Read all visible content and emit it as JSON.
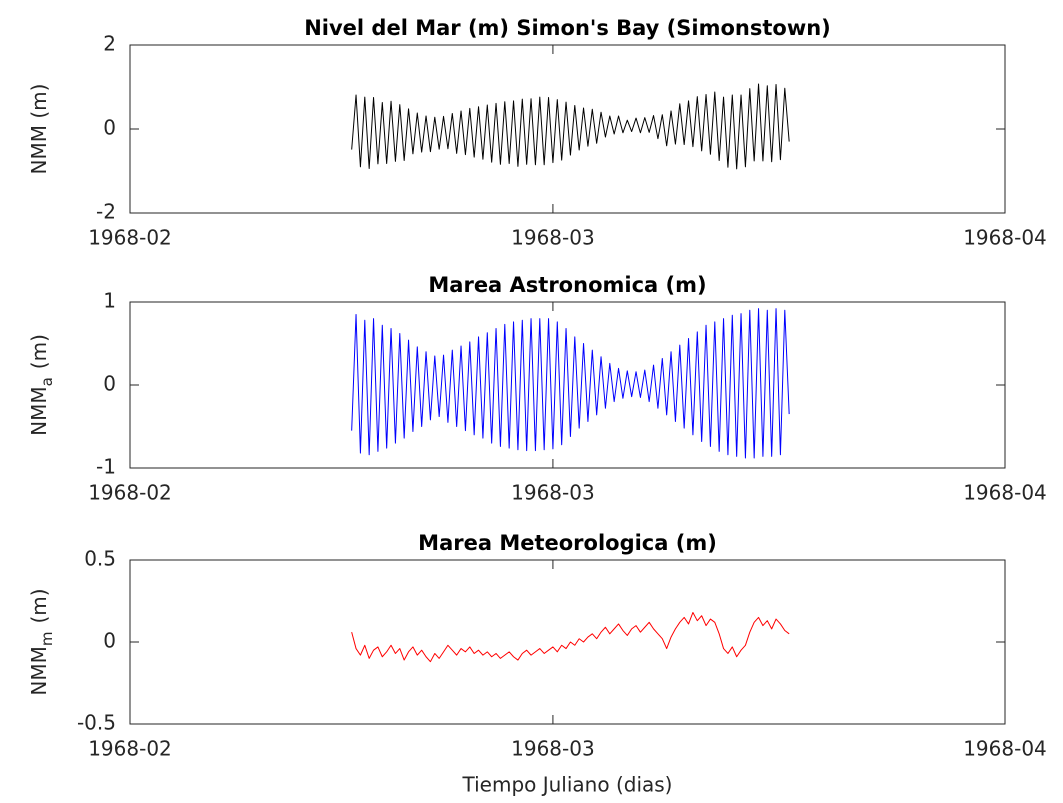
{
  "chart_data": [
    {
      "type": "line",
      "title": "Nivel del Mar (m) Simon's Bay (Simonstown)",
      "ylabel": "NMM (m)",
      "color": "#000000",
      "xlim": [
        0,
        60
      ],
      "xticks": [
        {
          "value": 0,
          "label": "1968-02"
        },
        {
          "value": 29,
          "label": "1968-03"
        },
        {
          "value": 60,
          "label": "1968-04"
        }
      ],
      "ylim": [
        -2,
        2
      ],
      "yticks": [
        -2,
        0,
        2
      ],
      "x": [
        15.2,
        15.5,
        15.8,
        16.1,
        16.4,
        16.7,
        17,
        17.3,
        17.6,
        17.9,
        18.2,
        18.5,
        18.8,
        19.1,
        19.4,
        19.7,
        20,
        20.3,
        20.6,
        20.9,
        21.2,
        21.5,
        21.8,
        22.1,
        22.4,
        22.7,
        23,
        23.3,
        23.6,
        23.9,
        24.2,
        24.5,
        24.8,
        25.1,
        25.4,
        25.7,
        26,
        26.3,
        26.6,
        26.9,
        27.2,
        27.5,
        27.8,
        28.1,
        28.4,
        28.7,
        29,
        29.3,
        29.6,
        29.9,
        30.2,
        30.5,
        30.8,
        31.1,
        31.4,
        31.7,
        32,
        32.3,
        32.6,
        32.9,
        33.2,
        33.5,
        33.8,
        34.1,
        34.4,
        34.7,
        35,
        35.3,
        35.6,
        35.9,
        36.2,
        36.5,
        36.8,
        37.1,
        37.4,
        37.7,
        38,
        38.3,
        38.6,
        38.9,
        39.2,
        39.5,
        39.8,
        40.1,
        40.4,
        40.7,
        41,
        41.3,
        41.6,
        41.9,
        42.2,
        42.5,
        42.8,
        43.1,
        43.4,
        43.7,
        44,
        44.3,
        44.6,
        44.9,
        45.2
      ],
      "values": [
        -0.49,
        0.81,
        -0.9,
        0.76,
        -0.94,
        0.75,
        -0.83,
        0.63,
        -0.82,
        0.66,
        -0.77,
        0.58,
        -0.75,
        0.48,
        -0.59,
        0.38,
        -0.55,
        0.31,
        -0.54,
        0.28,
        -0.48,
        0.3,
        -0.47,
        0.37,
        -0.58,
        0.43,
        -0.61,
        0.49,
        -0.67,
        0.53,
        -0.72,
        0.57,
        -0.79,
        0.61,
        -0.84,
        0.65,
        -0.82,
        0.67,
        -0.89,
        0.71,
        -0.84,
        0.72,
        -0.85,
        0.76,
        -0.85,
        0.75,
        -0.8,
        0.7,
        -0.74,
        0.64,
        -0.62,
        0.56,
        -0.5,
        0.5,
        -0.41,
        0.47,
        -0.34,
        0.4,
        -0.19,
        0.31,
        -0.12,
        0.31,
        -0.09,
        0.21,
        -0.06,
        0.26,
        -0.09,
        0.27,
        -0.08,
        0.32,
        -0.23,
        0.34,
        -0.4,
        0.43,
        -0.36,
        0.6,
        -0.37,
        0.67,
        -0.42,
        0.77,
        -0.52,
        0.82,
        -0.6,
        0.88,
        -0.75,
        0.76,
        -0.91,
        0.81,
        -0.95,
        0.81,
        -0.9,
        0.96,
        -0.76,
        1.07,
        -0.76,
        1.03,
        -0.78,
        1.06,
        -0.73,
        0.97,
        -0.3
      ]
    },
    {
      "type": "line",
      "title": "Marea Astronomica (m)",
      "ylabel": "NMM",
      "ylabel_subscript": "a",
      "ylabel_suffix": "(m)",
      "color": "#0000ff",
      "xlim": [
        0,
        60
      ],
      "xticks": [
        {
          "value": 0,
          "label": "1968-02"
        },
        {
          "value": 29,
          "label": "1968-03"
        },
        {
          "value": 60,
          "label": "1968-04"
        }
      ],
      "ylim": [
        -1,
        1
      ],
      "yticks": [
        -1,
        0,
        1
      ],
      "x": [
        15.2,
        15.5,
        15.8,
        16.1,
        16.4,
        16.7,
        17,
        17.3,
        17.6,
        17.9,
        18.2,
        18.5,
        18.8,
        19.1,
        19.4,
        19.7,
        20,
        20.3,
        20.6,
        20.9,
        21.2,
        21.5,
        21.8,
        22.1,
        22.4,
        22.7,
        23,
        23.3,
        23.6,
        23.9,
        24.2,
        24.5,
        24.8,
        25.1,
        25.4,
        25.7,
        26,
        26.3,
        26.6,
        26.9,
        27.2,
        27.5,
        27.8,
        28.1,
        28.4,
        28.7,
        29,
        29.3,
        29.6,
        29.9,
        30.2,
        30.5,
        30.8,
        31.1,
        31.4,
        31.7,
        32,
        32.3,
        32.6,
        32.9,
        33.2,
        33.5,
        33.8,
        34.1,
        34.4,
        34.7,
        35,
        35.3,
        35.6,
        35.9,
        36.2,
        36.5,
        36.8,
        37.1,
        37.4,
        37.7,
        38,
        38.3,
        38.6,
        38.9,
        39.2,
        39.5,
        39.8,
        40.1,
        40.4,
        40.7,
        41,
        41.3,
        41.6,
        41.9,
        42.2,
        42.5,
        42.8,
        43.1,
        43.4,
        43.7,
        44,
        44.3,
        44.6,
        44.9,
        45.2
      ],
      "values": [
        -0.55,
        0.85,
        -0.82,
        0.78,
        -0.84,
        0.8,
        -0.8,
        0.72,
        -0.76,
        0.68,
        -0.7,
        0.62,
        -0.64,
        0.54,
        -0.56,
        0.46,
        -0.5,
        0.4,
        -0.42,
        0.35,
        -0.38,
        0.36,
        -0.45,
        0.42,
        -0.5,
        0.47,
        -0.55,
        0.52,
        -0.6,
        0.58,
        -0.64,
        0.63,
        -0.7,
        0.68,
        -0.74,
        0.73,
        -0.76,
        0.76,
        -0.78,
        0.78,
        -0.79,
        0.8,
        -0.79,
        0.8,
        -0.78,
        0.8,
        -0.77,
        0.76,
        -0.72,
        0.68,
        -0.62,
        0.58,
        -0.52,
        0.5,
        -0.44,
        0.42,
        -0.36,
        0.34,
        -0.28,
        0.26,
        -0.2,
        0.2,
        -0.16,
        0.17,
        -0.14,
        0.16,
        -0.15,
        0.18,
        -0.2,
        0.24,
        -0.28,
        0.32,
        -0.36,
        0.4,
        -0.44,
        0.48,
        -0.52,
        0.56,
        -0.6,
        0.64,
        -0.68,
        0.72,
        -0.74,
        0.76,
        -0.8,
        0.8,
        -0.84,
        0.84,
        -0.86,
        0.86,
        -0.88,
        0.9,
        -0.88,
        0.92,
        -0.86,
        0.9,
        -0.86,
        0.92,
        -0.84,
        0.9,
        -0.35
      ]
    },
    {
      "type": "line",
      "title": "Marea Meteorologica (m)",
      "ylabel": "NMM",
      "ylabel_subscript": "m",
      "ylabel_suffix": "(m)",
      "xlabel": "Tiempo Juliano (dias)",
      "color": "#ff0000",
      "xlim": [
        0,
        60
      ],
      "xticks": [
        {
          "value": 0,
          "label": "1968-02"
        },
        {
          "value": 29,
          "label": "1968-03"
        },
        {
          "value": 60,
          "label": "1968-04"
        }
      ],
      "ylim": [
        -0.5,
        0.5
      ],
      "yticks": [
        -0.5,
        0,
        0.5
      ],
      "x": [
        15.2,
        15.5,
        15.8,
        16.1,
        16.4,
        16.7,
        17,
        17.3,
        17.6,
        17.9,
        18.2,
        18.5,
        18.8,
        19.1,
        19.4,
        19.7,
        20,
        20.3,
        20.6,
        20.9,
        21.2,
        21.5,
        21.8,
        22.1,
        22.4,
        22.7,
        23,
        23.3,
        23.6,
        23.9,
        24.2,
        24.5,
        24.8,
        25.1,
        25.4,
        25.7,
        26,
        26.3,
        26.6,
        26.9,
        27.2,
        27.5,
        27.8,
        28.1,
        28.4,
        28.7,
        29,
        29.3,
        29.6,
        29.9,
        30.2,
        30.5,
        30.8,
        31.1,
        31.4,
        31.7,
        32,
        32.3,
        32.6,
        32.9,
        33.2,
        33.5,
        33.8,
        34.1,
        34.4,
        34.7,
        35,
        35.3,
        35.6,
        35.9,
        36.2,
        36.5,
        36.8,
        37.1,
        37.4,
        37.7,
        38,
        38.3,
        38.6,
        38.9,
        39.2,
        39.5,
        39.8,
        40.1,
        40.4,
        40.7,
        41,
        41.3,
        41.6,
        41.9,
        42.2,
        42.5,
        42.8,
        43.1,
        43.4,
        43.7,
        44,
        44.3,
        44.6,
        44.9,
        45.2
      ],
      "values": [
        0.06,
        -0.04,
        -0.08,
        -0.02,
        -0.1,
        -0.05,
        -0.03,
        -0.09,
        -0.06,
        -0.02,
        -0.07,
        -0.04,
        -0.11,
        -0.06,
        -0.03,
        -0.08,
        -0.05,
        -0.09,
        -0.12,
        -0.07,
        -0.1,
        -0.06,
        -0.02,
        -0.05,
        -0.08,
        -0.04,
        -0.06,
        -0.03,
        -0.07,
        -0.05,
        -0.08,
        -0.06,
        -0.09,
        -0.07,
        -0.1,
        -0.08,
        -0.06,
        -0.09,
        -0.11,
        -0.07,
        -0.05,
        -0.08,
        -0.06,
        -0.04,
        -0.07,
        -0.05,
        -0.03,
        -0.06,
        -0.02,
        -0.04,
        0,
        -0.02,
        0.02,
        0,
        0.03,
        0.05,
        0.02,
        0.06,
        0.09,
        0.05,
        0.08,
        0.11,
        0.07,
        0.04,
        0.08,
        0.1,
        0.06,
        0.09,
        0.12,
        0.08,
        0.05,
        0.02,
        -0.04,
        0.03,
        0.08,
        0.12,
        0.15,
        0.11,
        0.18,
        0.13,
        0.16,
        0.1,
        0.14,
        0.12,
        0.05,
        -0.04,
        -0.07,
        -0.03,
        -0.09,
        -0.05,
        -0.02,
        0.06,
        0.12,
        0.15,
        0.1,
        0.13,
        0.08,
        0.14,
        0.11,
        0.07,
        0.05
      ]
    }
  ]
}
